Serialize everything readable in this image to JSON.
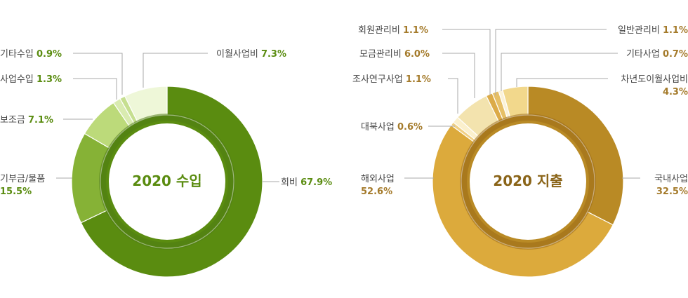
{
  "chart_data": [
    {
      "type": "pie",
      "title": "2020 수입",
      "categories": [
        "회비",
        "기부금/물품",
        "보조금",
        "사업수입",
        "기타수입",
        "이월사업비"
      ],
      "values": [
        67.9,
        15.5,
        7.1,
        1.3,
        0.9,
        7.3
      ],
      "labels": [
        {
          "name": "회비",
          "pct": "67.9%"
        },
        {
          "name": "기부금/물품",
          "pct": "15.5%"
        },
        {
          "name": "보조금",
          "pct": "7.1%"
        },
        {
          "name": "사업수입",
          "pct": "1.3%"
        },
        {
          "name": "기타수입",
          "pct": "0.9%"
        },
        {
          "name": "이월사업비",
          "pct": "7.3%"
        }
      ],
      "colors": [
        "#5a8c10",
        "#86b236",
        "#bcda7a",
        "#d9ebb0",
        "#c6df90",
        "#eef7d8"
      ],
      "title_color": "#5a8c10",
      "pct_color": "#5a8c10"
    },
    {
      "type": "pie",
      "title": "2020 지출",
      "categories": [
        "국내사업",
        "해외사업",
        "대북사업",
        "조사연구사업",
        "모금관리비",
        "회원관리비",
        "일반관리비",
        "기타사업",
        "차년도이월사업비"
      ],
      "values": [
        32.5,
        52.6,
        0.6,
        1.1,
        6.0,
        1.1,
        1.1,
        0.7,
        4.3
      ],
      "labels": [
        {
          "name": "국내사업",
          "pct": "32.5%"
        },
        {
          "name": "해외사업",
          "pct": "52.6%"
        },
        {
          "name": "대북사업",
          "pct": "0.6%"
        },
        {
          "name": "조사연구사업",
          "pct": "1.1%"
        },
        {
          "name": "모금관리비",
          "pct": "6.0%"
        },
        {
          "name": "회원관리비",
          "pct": "1.1%"
        },
        {
          "name": "일반관리비",
          "pct": "1.1%"
        },
        {
          "name": "기타사업",
          "pct": "0.7%"
        },
        {
          "name": "차년도이월사업비",
          "pct": "4.3%"
        }
      ],
      "colors": [
        "#b98a25",
        "#dcaa3c",
        "#f0d084",
        "#fbf0cc",
        "#f3e3ae",
        "#dcab48",
        "#e6bf66",
        "#fbf2d7",
        "#f2d88c"
      ],
      "title_color": "#8a6418",
      "pct_color": "#a47a2a"
    }
  ]
}
